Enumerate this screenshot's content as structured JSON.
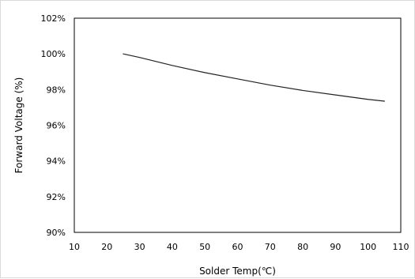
{
  "chart_data": {
    "type": "line",
    "title": "",
    "xlabel": "Solder Temp(℃)",
    "ylabel": "Forward Voltage (%)",
    "xlim": [
      10,
      110
    ],
    "ylim": [
      90,
      102
    ],
    "x_ticks": [
      10,
      20,
      30,
      40,
      50,
      60,
      70,
      80,
      90,
      100,
      110
    ],
    "y_ticks": [
      90,
      92,
      94,
      96,
      98,
      100,
      102
    ],
    "x_tick_labels": [
      "10",
      "20",
      "30",
      "40",
      "50",
      "60",
      "70",
      "80",
      "90",
      "100",
      "110"
    ],
    "y_tick_labels": [
      "90%",
      "92%",
      "94%",
      "96%",
      "98%",
      "100%",
      "102%"
    ],
    "grid": true,
    "legend": false,
    "colors": {
      "line": "#222222",
      "grid": "#8c8c8c",
      "axis": "#000000"
    },
    "series": [
      {
        "x": [
          25,
          30,
          40,
          50,
          60,
          70,
          80,
          90,
          100,
          105
        ],
        "y": [
          100.0,
          99.8,
          99.35,
          98.95,
          98.6,
          98.25,
          97.95,
          97.7,
          97.45,
          97.35
        ]
      }
    ]
  }
}
